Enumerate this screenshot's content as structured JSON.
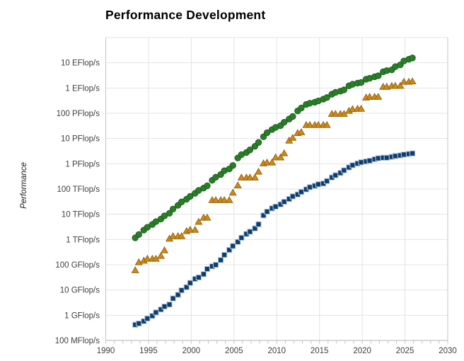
{
  "chart_data": {
    "type": "scatter",
    "title": "Performance Development",
    "xlabel": "",
    "ylabel": "Performance",
    "grid": true,
    "legend": "none",
    "xlim": [
      1990,
      2030
    ],
    "ylim_log10_gflops": [
      -1,
      11
    ],
    "x_ticks": [
      1990,
      1995,
      2000,
      2005,
      2010,
      2015,
      2020,
      2025,
      2030
    ],
    "y_ticks": [
      {
        "label": "10 EFlop/s",
        "value": 10000000000
      },
      {
        "label": "1 EFlop/s",
        "value": 1000000000
      },
      {
        "label": "100 PFlop/s",
        "value": 100000000
      },
      {
        "label": "10 PFlop/s",
        "value": 10000000
      },
      {
        "label": "1 PFlop/s",
        "value": 1000000
      },
      {
        "label": "100 TFlop/s",
        "value": 100000
      },
      {
        "label": "10 TFlop/s",
        "value": 10000
      },
      {
        "label": "1 TFlop/s",
        "value": 1000
      },
      {
        "label": "100 GFlop/s",
        "value": 100
      },
      {
        "label": "10 GFlop/s",
        "value": 10
      },
      {
        "label": "1 GFlop/s",
        "value": 1
      },
      {
        "label": "100 MFlop/s",
        "value": 0.1
      }
    ],
    "colors": {
      "grid": "#e3e3e3",
      "axis": "#c4c4c4",
      "tick_label": "#3f3f3f",
      "title": "#000000"
    },
    "x": [
      1993.45,
      1993.87,
      1994.45,
      1994.87,
      1995.45,
      1995.87,
      1996.45,
      1996.87,
      1997.45,
      1997.87,
      1998.45,
      1998.87,
      1999.45,
      1999.87,
      2000.45,
      2000.87,
      2001.45,
      2001.87,
      2002.45,
      2002.87,
      2003.45,
      2003.87,
      2004.45,
      2004.87,
      2005.45,
      2005.87,
      2006.45,
      2006.87,
      2007.45,
      2007.87,
      2008.45,
      2008.87,
      2009.45,
      2009.87,
      2010.45,
      2010.87,
      2011.45,
      2011.87,
      2012.45,
      2012.87,
      2013.45,
      2013.87,
      2014.45,
      2014.87,
      2015.45,
      2015.87,
      2016.45,
      2016.87,
      2017.45,
      2017.87,
      2018.45,
      2018.87,
      2019.45,
      2019.87,
      2020.45,
      2020.87,
      2021.45,
      2021.87,
      2022.45,
      2022.87,
      2023.45,
      2023.87,
      2024.45,
      2024.87,
      2025.45,
      2025.87
    ],
    "unit": "GFlop/s",
    "series": [
      {
        "name": "green-circles",
        "marker": "circle",
        "color": "#2a7e2a",
        "edge": "#1d611d",
        "values": [
          1170,
          1570,
          2350,
          3050,
          3930,
          5110,
          6460,
          8610,
          10900,
          16100,
          22600,
          30800,
          39400,
          50900,
          67800,
          88100,
          108800,
          134400,
          222000,
          293000,
          375000,
          528000,
          624000,
          850000,
          1690000,
          2300000,
          2790000,
          3540000,
          4920000,
          6970000,
          11700000,
          16950000,
          22600000,
          27600000,
          32400000,
          44200000,
          58700000,
          74200000,
          123400000,
          162000000,
          223000000,
          250000000,
          274000000,
          309000000,
          363000000,
          420000000,
          566700000,
          672000000,
          749000000,
          845000000,
          1220000000,
          1410000000,
          1560000000,
          1650000000,
          2220000000,
          2430000000,
          2790000000,
          3040000000,
          4400000000,
          4860000000,
          5240000000,
          7010000000,
          8210000000,
          11720000000,
          13800000000,
          15500000000
        ]
      },
      {
        "name": "orange-triangles",
        "marker": "triangle",
        "color": "#cc8a1c",
        "edge": "#9c660e",
        "values": [
          59.7,
          124,
          143.4,
          170,
          170,
          170,
          220.4,
          368.2,
          1068,
          1338,
          1338,
          1338,
          2121,
          2379,
          2379,
          4938,
          7226,
          7226,
          35860,
          35860,
          35860,
          35860,
          35860,
          70720,
          136800,
          280600,
          280600,
          280600,
          280600,
          478200,
          1026000,
          1105000,
          1105000,
          1759000,
          1759000,
          2566000,
          8162000,
          10510000,
          16320000,
          17590000,
          33860000,
          33860000,
          33860000,
          33860000,
          33860000,
          33860000,
          93010000,
          93010000,
          93010000,
          93010000,
          122300000,
          143500000,
          148600000,
          148600000,
          415500000,
          442000000,
          442000000,
          442000000,
          1102000000,
          1102000000,
          1194000000,
          1194000000,
          1206000000,
          1742000000,
          1742000000,
          1809000000
        ]
      },
      {
        "name": "blue-squares",
        "marker": "square",
        "color": "#123d6b",
        "edge": "#b3cbe2",
        "values": [
          0.42,
          0.47,
          0.58,
          0.74,
          0.94,
          1.29,
          1.69,
          2.21,
          2.65,
          4.62,
          6.44,
          9.7,
          12.9,
          19,
          27.5,
          31.4,
          42.4,
          67.8,
          86.6,
          99,
          153,
          245,
          385,
          551,
          801,
          1170,
          1650,
          2030,
          2740,
          4010,
          9000,
          12640,
          17100,
          20050,
          24670,
          31110,
          40190,
          50900,
          60820,
          76460,
          96620,
          117800,
          133700,
          153600,
          164800,
          206300,
          285900,
          349300,
          432200,
          548700,
          716000,
          874800,
          1022000,
          1142000,
          1230000,
          1320000,
          1510000,
          1650000,
          1730000,
          1730000,
          1870000,
          2020000,
          2130000,
          2310000,
          2440000,
          2570000
        ]
      }
    ]
  }
}
